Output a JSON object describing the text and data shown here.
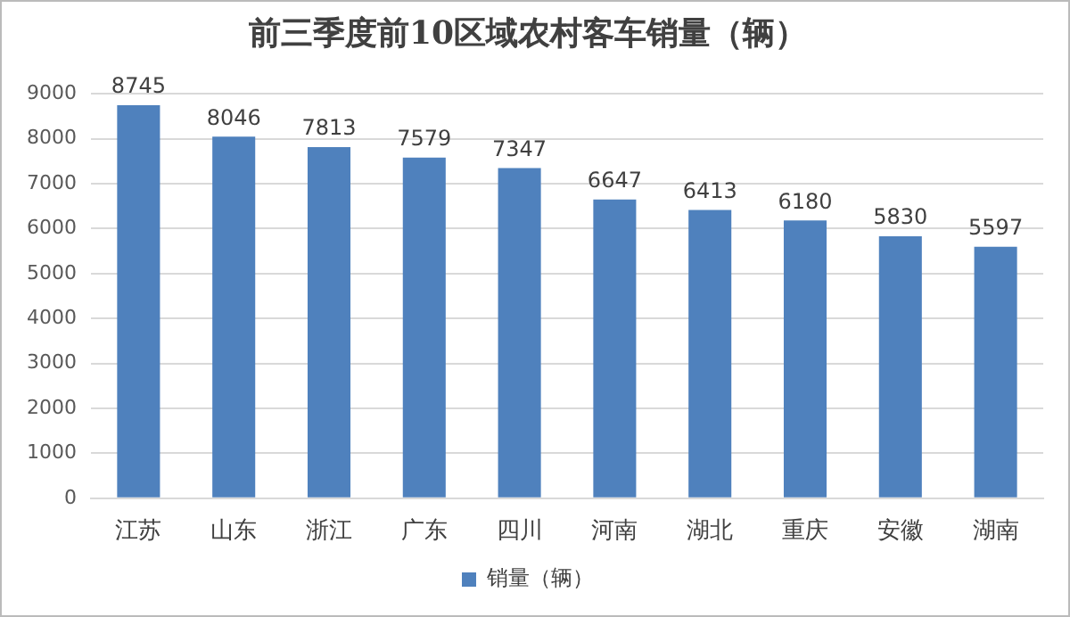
{
  "chart_data": {
    "type": "bar",
    "title": "前三季度前10区域农村客车销量（辆）",
    "categories": [
      "江苏",
      "山东",
      "浙江",
      "广东",
      "四川",
      "河南",
      "湖北",
      "重庆",
      "安徽",
      "湖南"
    ],
    "series": [
      {
        "name": "销量（辆）",
        "color": "#4f81bd",
        "values": [
          8745,
          8046,
          7813,
          7579,
          7347,
          6647,
          6413,
          6180,
          5830,
          5597
        ]
      }
    ],
    "ylim": [
      0,
      9000
    ],
    "yticks": [
      0,
      1000,
      2000,
      3000,
      4000,
      5000,
      6000,
      7000,
      8000,
      9000
    ],
    "grid": "y",
    "legend": "bottom",
    "data_labels": true
  }
}
